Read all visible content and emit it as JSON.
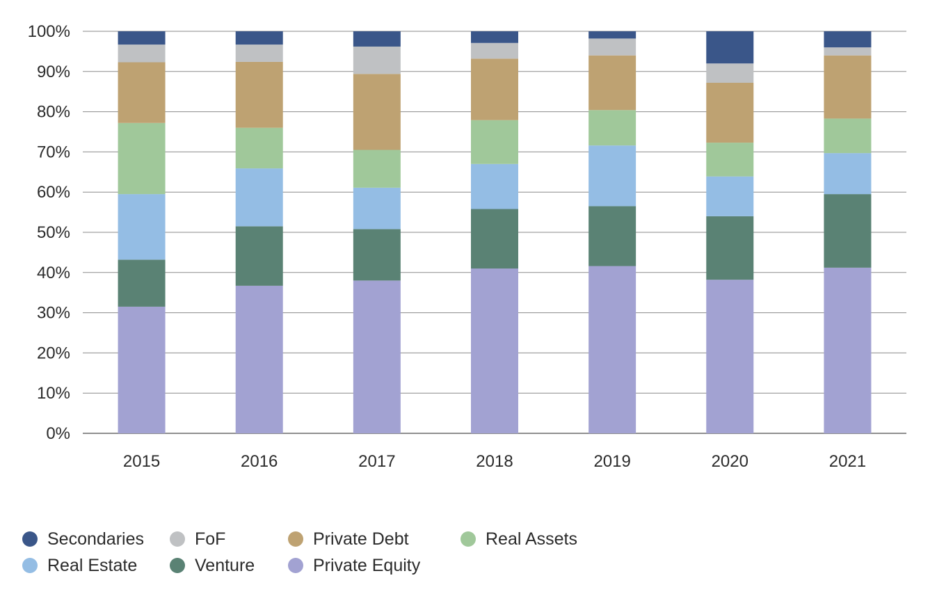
{
  "chart_data": {
    "type": "bar",
    "stacked": true,
    "categories": [
      "2015",
      "2016",
      "2017",
      "2018",
      "2019",
      "2020",
      "2021"
    ],
    "ylim": [
      0,
      100
    ],
    "yticks": [
      "0%",
      "10%",
      "20%",
      "30%",
      "40%",
      "50%",
      "60%",
      "70%",
      "80%",
      "90%",
      "100%"
    ],
    "grid": true,
    "legend_position": "bottom-left",
    "series": [
      {
        "name": "Private Equity",
        "color": "#a2a2d2",
        "values": [
          31.5,
          36.7,
          38.0,
          41.0,
          41.6,
          38.2,
          41.2
        ]
      },
      {
        "name": "Venture",
        "color": "#5a8274",
        "values": [
          11.7,
          14.8,
          12.8,
          14.8,
          14.9,
          15.8,
          18.3
        ]
      },
      {
        "name": "Real Estate",
        "color": "#94bde4",
        "values": [
          16.3,
          14.4,
          10.3,
          11.2,
          15.1,
          9.9,
          10.2
        ]
      },
      {
        "name": "Real Assets",
        "color": "#a0c89a",
        "values": [
          17.7,
          10.1,
          9.4,
          10.9,
          8.8,
          8.4,
          8.6
        ]
      },
      {
        "name": "Private Debt",
        "color": "#bea272",
        "values": [
          15.1,
          16.4,
          18.9,
          15.3,
          13.6,
          14.9,
          15.7
        ]
      },
      {
        "name": "FoF",
        "color": "#bfc1c3",
        "values": [
          4.4,
          4.3,
          6.8,
          3.9,
          4.2,
          4.8,
          2.0
        ]
      },
      {
        "name": "Secondaries",
        "color": "#3a5689",
        "values": [
          3.3,
          3.3,
          3.8,
          2.9,
          1.8,
          8.0,
          4.0
        ]
      }
    ]
  },
  "legend": [
    [
      {
        "label": "Secondaries",
        "color": "#3a5689"
      },
      {
        "label": "FoF",
        "color": "#bfc1c3"
      },
      {
        "label": "Private Debt",
        "color": "#bea272"
      },
      {
        "label": "Real Assets",
        "color": "#a0c89a"
      }
    ],
    [
      {
        "label": "Real Estate",
        "color": "#94bde4"
      },
      {
        "label": "Venture",
        "color": "#5a8274"
      },
      {
        "label": "Private Equity",
        "color": "#a2a2d2"
      }
    ]
  ]
}
